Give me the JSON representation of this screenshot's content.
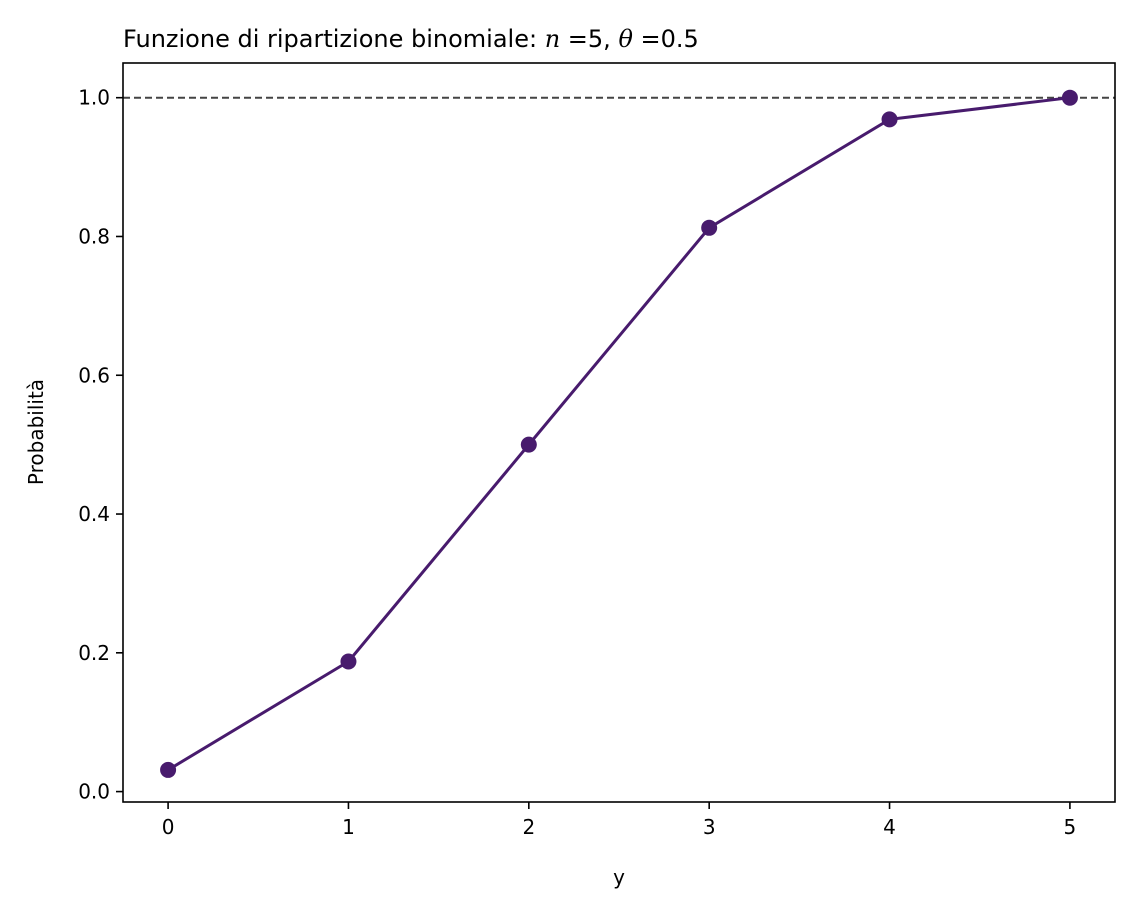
{
  "chart_data": {
    "type": "line",
    "title": "Funzione di ripartizione binomiale:",
    "title_params": {
      "n_symbol": "n",
      "n_equals": "=5, ",
      "theta_symbol": "θ",
      "theta_equals": "=0.5"
    },
    "xlabel": "y",
    "ylabel": "Probabilità",
    "x": [
      0,
      1,
      2,
      3,
      4,
      5
    ],
    "series": [
      {
        "values": [
          0.03125,
          0.1875,
          0.5,
          0.8125,
          0.96875,
          1.0
        ],
        "color": "#481b6d",
        "markers": true
      }
    ],
    "reference_line": {
      "y": 1.0,
      "style": "dashed",
      "color": "#444444"
    },
    "xlim": [
      -0.25,
      5.25
    ],
    "ylim": [
      -0.015,
      1.05
    ],
    "xticks": [
      0,
      1,
      2,
      3,
      4,
      5
    ],
    "xtick_labels": [
      "0",
      "1",
      "2",
      "3",
      "4",
      "5"
    ],
    "yticks": [
      0.0,
      0.2,
      0.4,
      0.6,
      0.8,
      1.0
    ],
    "ytick_labels": [
      "0.0",
      "0.2",
      "0.4",
      "0.6",
      "0.8",
      "1.0"
    ],
    "grid": false,
    "legend": false
  }
}
